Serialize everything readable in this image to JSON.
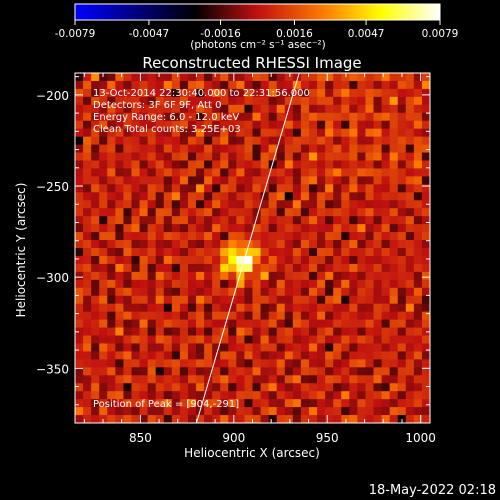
{
  "colorbar": {
    "ticks": [
      "-0.0079",
      "-0.0047",
      "-0.0016",
      "0.0016",
      "0.0047",
      "0.0079"
    ],
    "tick_values": [
      -0.0079,
      -0.0047,
      -0.0016,
      0.0016,
      0.0047,
      0.0079
    ],
    "units": "(photons cm⁻² s⁻¹ asec⁻²)",
    "range": [
      -0.0079,
      0.0079
    ],
    "colormap": [
      "#0000ff",
      "#000000",
      "#c01010",
      "#ff7a00",
      "#ffff00",
      "#ffffff"
    ]
  },
  "chart_data": {
    "type": "heatmap",
    "title": "Reconstructed RHESSI Image",
    "xlabel": "Heliocentric X (arcsec)",
    "ylabel": "Heliocentric Y (arcsec)",
    "xlim": [
      815,
      1005
    ],
    "ylim": [
      -380,
      -188
    ],
    "xticks": [
      850,
      900,
      950,
      1000
    ],
    "yticks": [
      -200,
      -250,
      -300,
      -350
    ],
    "xtick_labels": [
      "850",
      "900",
      "950",
      "1000"
    ],
    "ytick_labels": [
      "−200",
      "−250",
      "−300",
      "−350"
    ],
    "peak": {
      "x": 904,
      "y": -291
    },
    "limb_line": {
      "x_at_bottom": 880,
      "x_at_top": 935
    },
    "info_lines": [
      "13-Oct-2014 22:30:40.000 to 22:31:56.000",
      "Detectors: 3F 6F 9F, Att 0",
      "Energy Range: 6.0 - 12.0 keV",
      "Clean    Total counts: 3.25E+03"
    ],
    "peak_label": "Position of Peak = [904,-291]"
  },
  "footer": {
    "timestamp": "18-May-2022 02:18"
  }
}
